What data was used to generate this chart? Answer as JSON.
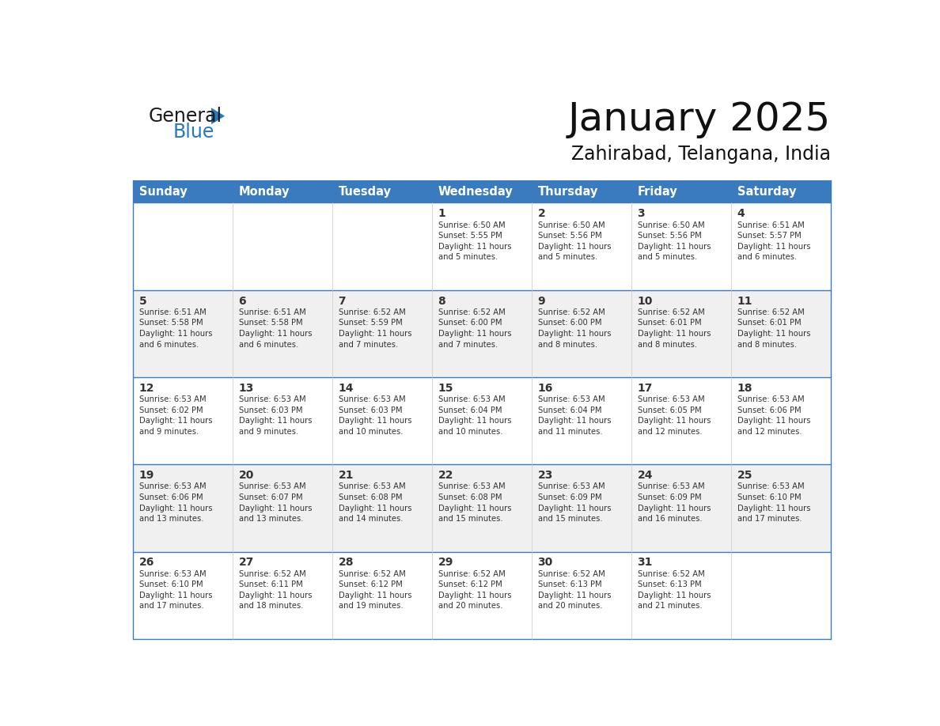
{
  "title": "January 2025",
  "subtitle": "Zahirabad, Telangana, India",
  "header_color": "#3a7bbf",
  "header_text_color": "#ffffff",
  "cell_bg_white": "#ffffff",
  "cell_bg_light": "#f0f0f0",
  "border_color": "#3a7bbf",
  "divider_color": "#3a7bbf",
  "text_color": "#333333",
  "logo_black": "#1a1a1a",
  "logo_blue": "#2878be",
  "days_of_week": [
    "Sunday",
    "Monday",
    "Tuesday",
    "Wednesday",
    "Thursday",
    "Friday",
    "Saturday"
  ],
  "calendar_data": [
    [
      {
        "day": "",
        "info": ""
      },
      {
        "day": "",
        "info": ""
      },
      {
        "day": "",
        "info": ""
      },
      {
        "day": "1",
        "info": "Sunrise: 6:50 AM\nSunset: 5:55 PM\nDaylight: 11 hours\nand 5 minutes."
      },
      {
        "day": "2",
        "info": "Sunrise: 6:50 AM\nSunset: 5:56 PM\nDaylight: 11 hours\nand 5 minutes."
      },
      {
        "day": "3",
        "info": "Sunrise: 6:50 AM\nSunset: 5:56 PM\nDaylight: 11 hours\nand 5 minutes."
      },
      {
        "day": "4",
        "info": "Sunrise: 6:51 AM\nSunset: 5:57 PM\nDaylight: 11 hours\nand 6 minutes."
      }
    ],
    [
      {
        "day": "5",
        "info": "Sunrise: 6:51 AM\nSunset: 5:58 PM\nDaylight: 11 hours\nand 6 minutes."
      },
      {
        "day": "6",
        "info": "Sunrise: 6:51 AM\nSunset: 5:58 PM\nDaylight: 11 hours\nand 6 minutes."
      },
      {
        "day": "7",
        "info": "Sunrise: 6:52 AM\nSunset: 5:59 PM\nDaylight: 11 hours\nand 7 minutes."
      },
      {
        "day": "8",
        "info": "Sunrise: 6:52 AM\nSunset: 6:00 PM\nDaylight: 11 hours\nand 7 minutes."
      },
      {
        "day": "9",
        "info": "Sunrise: 6:52 AM\nSunset: 6:00 PM\nDaylight: 11 hours\nand 8 minutes."
      },
      {
        "day": "10",
        "info": "Sunrise: 6:52 AM\nSunset: 6:01 PM\nDaylight: 11 hours\nand 8 minutes."
      },
      {
        "day": "11",
        "info": "Sunrise: 6:52 AM\nSunset: 6:01 PM\nDaylight: 11 hours\nand 8 minutes."
      }
    ],
    [
      {
        "day": "12",
        "info": "Sunrise: 6:53 AM\nSunset: 6:02 PM\nDaylight: 11 hours\nand 9 minutes."
      },
      {
        "day": "13",
        "info": "Sunrise: 6:53 AM\nSunset: 6:03 PM\nDaylight: 11 hours\nand 9 minutes."
      },
      {
        "day": "14",
        "info": "Sunrise: 6:53 AM\nSunset: 6:03 PM\nDaylight: 11 hours\nand 10 minutes."
      },
      {
        "day": "15",
        "info": "Sunrise: 6:53 AM\nSunset: 6:04 PM\nDaylight: 11 hours\nand 10 minutes."
      },
      {
        "day": "16",
        "info": "Sunrise: 6:53 AM\nSunset: 6:04 PM\nDaylight: 11 hours\nand 11 minutes."
      },
      {
        "day": "17",
        "info": "Sunrise: 6:53 AM\nSunset: 6:05 PM\nDaylight: 11 hours\nand 12 minutes."
      },
      {
        "day": "18",
        "info": "Sunrise: 6:53 AM\nSunset: 6:06 PM\nDaylight: 11 hours\nand 12 minutes."
      }
    ],
    [
      {
        "day": "19",
        "info": "Sunrise: 6:53 AM\nSunset: 6:06 PM\nDaylight: 11 hours\nand 13 minutes."
      },
      {
        "day": "20",
        "info": "Sunrise: 6:53 AM\nSunset: 6:07 PM\nDaylight: 11 hours\nand 13 minutes."
      },
      {
        "day": "21",
        "info": "Sunrise: 6:53 AM\nSunset: 6:08 PM\nDaylight: 11 hours\nand 14 minutes."
      },
      {
        "day": "22",
        "info": "Sunrise: 6:53 AM\nSunset: 6:08 PM\nDaylight: 11 hours\nand 15 minutes."
      },
      {
        "day": "23",
        "info": "Sunrise: 6:53 AM\nSunset: 6:09 PM\nDaylight: 11 hours\nand 15 minutes."
      },
      {
        "day": "24",
        "info": "Sunrise: 6:53 AM\nSunset: 6:09 PM\nDaylight: 11 hours\nand 16 minutes."
      },
      {
        "day": "25",
        "info": "Sunrise: 6:53 AM\nSunset: 6:10 PM\nDaylight: 11 hours\nand 17 minutes."
      }
    ],
    [
      {
        "day": "26",
        "info": "Sunrise: 6:53 AM\nSunset: 6:10 PM\nDaylight: 11 hours\nand 17 minutes."
      },
      {
        "day": "27",
        "info": "Sunrise: 6:52 AM\nSunset: 6:11 PM\nDaylight: 11 hours\nand 18 minutes."
      },
      {
        "day": "28",
        "info": "Sunrise: 6:52 AM\nSunset: 6:12 PM\nDaylight: 11 hours\nand 19 minutes."
      },
      {
        "day": "29",
        "info": "Sunrise: 6:52 AM\nSunset: 6:12 PM\nDaylight: 11 hours\nand 20 minutes."
      },
      {
        "day": "30",
        "info": "Sunrise: 6:52 AM\nSunset: 6:13 PM\nDaylight: 11 hours\nand 20 minutes."
      },
      {
        "day": "31",
        "info": "Sunrise: 6:52 AM\nSunset: 6:13 PM\nDaylight: 11 hours\nand 21 minutes."
      },
      {
        "day": "",
        "info": ""
      }
    ]
  ]
}
